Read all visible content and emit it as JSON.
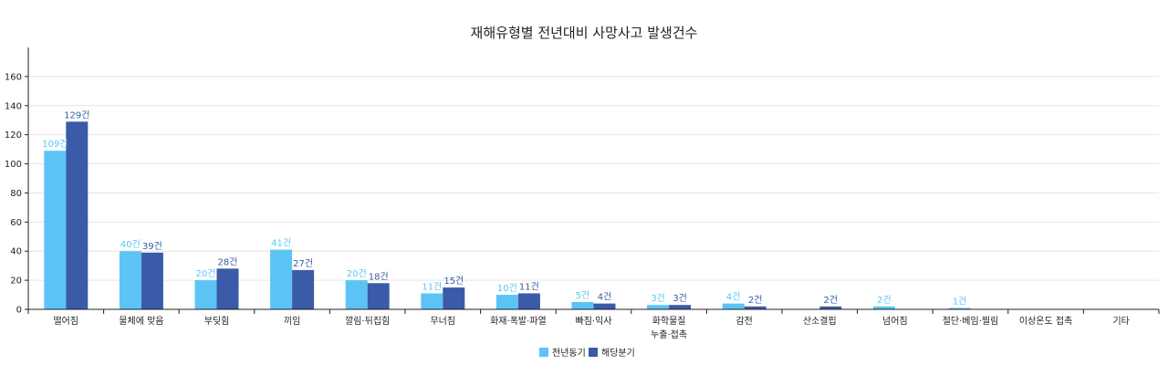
{
  "chart_data": {
    "type": "bar",
    "title": "재해유형별 전년대비 사망사고 발생건수",
    "xlabel": "",
    "ylabel": "",
    "ylim": [
      0,
      180
    ],
    "yticks": [
      0,
      20,
      40,
      60,
      80,
      100,
      120,
      140,
      160
    ],
    "grid": true,
    "legend_position": "bottom-center",
    "label_suffix": "건",
    "categories": [
      [
        "떨어짐"
      ],
      [
        "물체에 맞음"
      ],
      [
        "부딪힘"
      ],
      [
        "끼임"
      ],
      [
        "깔림·뒤집힘"
      ],
      [
        "무너짐"
      ],
      [
        "화재·폭발·파열"
      ],
      [
        "빠짐·익사"
      ],
      [
        "화학물질",
        "누출·접촉"
      ],
      [
        "감전"
      ],
      [
        "산소결핍"
      ],
      [
        "넘어짐"
      ],
      [
        "절단·베임·찔림"
      ],
      [
        "이상온도 접촉"
      ],
      [
        "기타"
      ]
    ],
    "series": [
      {
        "name": "전년동기",
        "color": "#5bc4f5",
        "values": [
          109,
          40,
          20,
          41,
          20,
          11,
          10,
          5,
          3,
          4,
          0,
          2,
          1,
          0,
          0
        ]
      },
      {
        "name": "해당분기",
        "color": "#3a5ba8",
        "values": [
          129,
          39,
          28,
          27,
          18,
          15,
          11,
          4,
          3,
          2,
          2,
          0,
          0,
          0,
          0
        ]
      }
    ]
  }
}
